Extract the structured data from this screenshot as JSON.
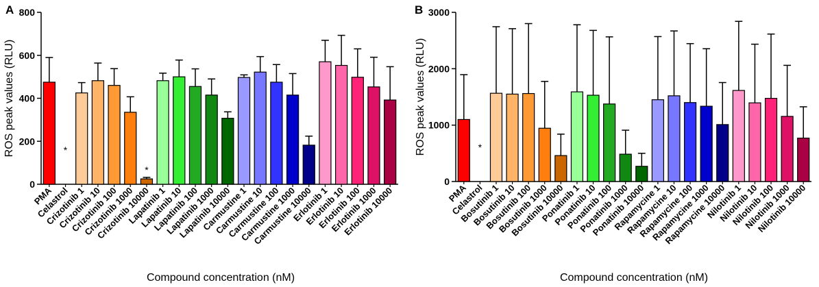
{
  "chart_data": [
    {
      "type": "bar",
      "panel_label": "A",
      "ylabel": "ROS peak values (RLU)",
      "xlabel": "Compound concentration (nM)",
      "ylim": [
        0,
        800
      ],
      "yticks": [
        "0",
        "200",
        "400",
        "600",
        "800"
      ],
      "categories": [
        "PMA",
        "Celastrol",
        "Crizotinib 1",
        "Crizotinib 10",
        "Crizotinib 100",
        "Crizotinib 1000",
        "Crizotinib 10000",
        "Lapatinib 1",
        "Lapatinib 10",
        "Lapatinib 100",
        "Lapatinib 1000",
        "Lapatinib 10000",
        "Carmustine 1",
        "Carmustine 10",
        "Carmustine 100",
        "Carmustine 1000",
        "Carmustine 10000",
        "Erlotinib 1",
        "Erlotinib 10",
        "Erlotinib 100",
        "Erlotinib 1000",
        "Erlotinib 10000"
      ],
      "values": [
        475,
        0,
        425,
        482,
        460,
        335,
        25,
        482,
        500,
        455,
        415,
        307,
        497,
        522,
        475,
        415,
        182,
        570,
        553,
        498,
        453,
        392
      ],
      "errors": [
        115,
        0,
        48,
        82,
        78,
        72,
        7,
        35,
        78,
        82,
        75,
        30,
        12,
        72,
        82,
        100,
        42,
        100,
        140,
        132,
        138,
        155
      ],
      "colors": [
        "#ff0000",
        "#ffffff",
        "#ffcc99",
        "#ffb366",
        "#ff9933",
        "#ff7f0e",
        "#cc6600",
        "#99ff99",
        "#33ee33",
        "#22aa22",
        "#118811",
        "#006600",
        "#9999ff",
        "#7777ff",
        "#3333ff",
        "#0000cc",
        "#000088",
        "#ff99cc",
        "#ff66aa",
        "#ff2277",
        "#dd1166",
        "#aa0044"
      ],
      "significance": [
        "",
        "*",
        "",
        "",
        "",
        "",
        "*",
        "",
        "",
        "",
        "",
        "",
        "",
        "",
        "",
        "",
        "",
        "",
        "",
        "",
        "",
        ""
      ]
    },
    {
      "type": "bar",
      "panel_label": "B",
      "ylabel": "ROS peak values (RLU)",
      "xlabel": "Compound concentration (nM)",
      "ylim": [
        0,
        3000
      ],
      "yticks": [
        "0",
        "1000",
        "2000",
        "3000"
      ],
      "categories": [
        "PMA",
        "Celastrol",
        "Bosutinib 1",
        "Bosutinib 10",
        "Bosutinib 100",
        "Bosutinib 1000",
        "Bosutinib 10000",
        "Ponatinib 1",
        "Ponatinib 10",
        "Ponatinib 100",
        "Ponatinib 1000",
        "Ponatinib 10000",
        "Rapamycine 1",
        "Rapamycine 10",
        "Rapamycine 100",
        "Rapamycine 1000",
        "Rapamycine 10000",
        "Nilotinib 1",
        "Nilotinib 10",
        "Nilotinib 100",
        "Nilotinib 1000",
        "Nilotinib 10000"
      ],
      "values": [
        1100,
        0,
        1565,
        1550,
        1560,
        945,
        460,
        1590,
        1530,
        1375,
        485,
        270,
        1450,
        1520,
        1400,
        1335,
        1010,
        1615,
        1395,
        1475,
        1155,
        770
      ],
      "errors": [
        795,
        0,
        1180,
        1160,
        1240,
        830,
        380,
        1190,
        1150,
        1190,
        425,
        230,
        1120,
        1150,
        1045,
        1020,
        745,
        1225,
        1040,
        1140,
        905,
        555
      ],
      "colors": [
        "#ff0000",
        "#ffffff",
        "#ffcc99",
        "#ffb366",
        "#ff9933",
        "#ff7f0e",
        "#cc6600",
        "#99ff99",
        "#33ee33",
        "#22aa22",
        "#118811",
        "#006600",
        "#9999ff",
        "#7777ff",
        "#3333ff",
        "#0000cc",
        "#000088",
        "#ff99cc",
        "#ff66aa",
        "#ff2277",
        "#dd1166",
        "#aa0044"
      ],
      "significance": [
        "",
        "*",
        "",
        "",
        "",
        "",
        "",
        "",
        "",
        "",
        "",
        "",
        "",
        "",
        "",
        "",
        "",
        "",
        "",
        "",
        "",
        ""
      ]
    }
  ]
}
